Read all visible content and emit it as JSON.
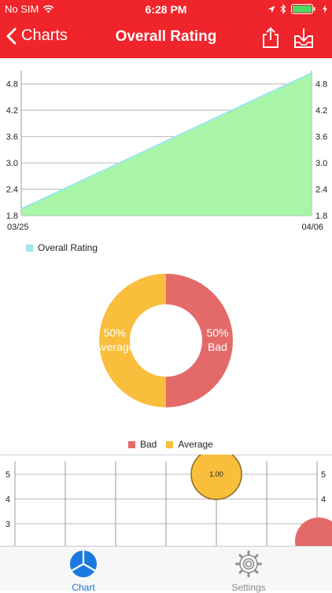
{
  "status": {
    "carrier": "No SIM",
    "time": "6:28 PM"
  },
  "nav": {
    "back_label": "Charts",
    "title": "Overall Rating"
  },
  "colors": {
    "accent": "#f0242b",
    "area_fill": "#a8f5a8",
    "area_line": "#9ee6f0",
    "bad": "#e46a6a",
    "average": "#f8be3c",
    "tab_active": "#1a7ae0",
    "tab_inactive": "#8e8e93"
  },
  "chart_data": [
    {
      "type": "area",
      "x": [
        "03/25",
        "04/06"
      ],
      "series": [
        {
          "name": "Overall Rating",
          "values": [
            1.95,
            5.05
          ]
        }
      ],
      "x_tick_labels": [
        "03/25",
        "04/06"
      ],
      "y_ticks": [
        "1.8",
        "2.4",
        "3.0",
        "3.6",
        "4.2",
        "4.8"
      ],
      "ylim": [
        1.8,
        5.1
      ],
      "grid": true,
      "legend": "bottom-left"
    },
    {
      "type": "pie",
      "style": "donut",
      "slices": [
        {
          "name": "Bad",
          "value": 50,
          "label": "50%",
          "sublabel": "Bad"
        },
        {
          "name": "Average",
          "value": 50,
          "label": "50%",
          "sublabel": "Average"
        }
      ],
      "legend": "bottom-center"
    },
    {
      "type": "scatter",
      "style": "bubble",
      "y_ticks": [
        "3",
        "4",
        "5"
      ],
      "points": [
        {
          "y": 5,
          "size": 1.0,
          "label": "1.00",
          "series": "Average"
        },
        {
          "y": 3,
          "size": 1.0,
          "label": "",
          "series": "Bad"
        }
      ],
      "grid": true
    }
  ],
  "tabs": [
    {
      "label": "Chart",
      "icon": "pie-chart-icon",
      "active": true
    },
    {
      "label": "Settings",
      "icon": "gear-icon",
      "active": false
    }
  ]
}
